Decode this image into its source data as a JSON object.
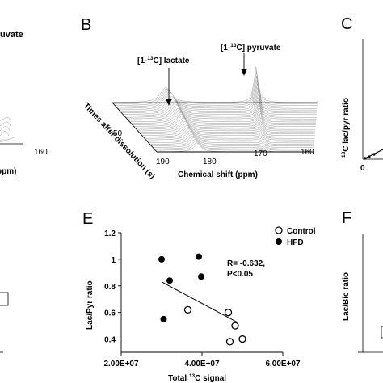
{
  "panels": {
    "left_partial": {
      "label_fragment": "uvate",
      "tick_160": "160",
      "xlabel_fragment": "ppm)"
    },
    "B": {
      "letter": "B",
      "peak_lactate": "[1-13C] lactate",
      "peak_pyruvate": "[1-13C] pyruvate",
      "y_axis_label": "Times after dissolution (s)",
      "y_tick_50": "50",
      "x_ticks": [
        "190",
        "180",
        "170",
        "160"
      ],
      "x_label": "Chemical shift (ppm)"
    },
    "C": {
      "letter": "C",
      "y_label": "13C lac/pyr ratio",
      "x_tick": "0"
    },
    "E": {
      "letter": "E",
      "y_label": "Lac/Pyr ratio",
      "x_label": "Total 13C signal",
      "legend": [
        {
          "label": "Control",
          "marker": "open-circle"
        },
        {
          "label": "HFD",
          "marker": "filled-circle"
        }
      ],
      "stats_line1": "R= -0.632,",
      "stats_line2": "P<0.05"
    },
    "F": {
      "letter": "F",
      "y_label": "Lac/Bic ratio"
    }
  },
  "chart_data": [
    {
      "type": "scatter",
      "panel": "E",
      "xlabel": "Total 13C signal",
      "ylabel": "Lac/Pyr ratio",
      "xlim": [
        20000000,
        60000000
      ],
      "ylim": [
        0.3,
        1.2
      ],
      "x_tick_labels": [
        "2.00E+07",
        "4.00E+07",
        "6.00E+07"
      ],
      "y_tick_labels": [
        "0.4",
        "0.6",
        "0.8",
        "1",
        "1.2"
      ],
      "annotation": "R= -0.632, P<0.05",
      "series": [
        {
          "name": "Control",
          "marker": "open-circle",
          "points": [
            [
              36500000,
              0.62
            ],
            [
              46500000,
              0.6
            ],
            [
              46900000,
              0.38
            ],
            [
              48200000,
              0.5
            ],
            [
              50000000,
              0.4
            ]
          ]
        },
        {
          "name": "HFD",
          "marker": "filled-circle",
          "points": [
            [
              30000000,
              1.0
            ],
            [
              30500000,
              0.55
            ],
            [
              32000000,
              0.84
            ],
            [
              39200000,
              1.02
            ],
            [
              39800000,
              0.87
            ]
          ]
        }
      ],
      "trendline": {
        "x": [
          30000000,
          48500000
        ],
        "y": [
          0.83,
          0.53
        ]
      }
    }
  ]
}
